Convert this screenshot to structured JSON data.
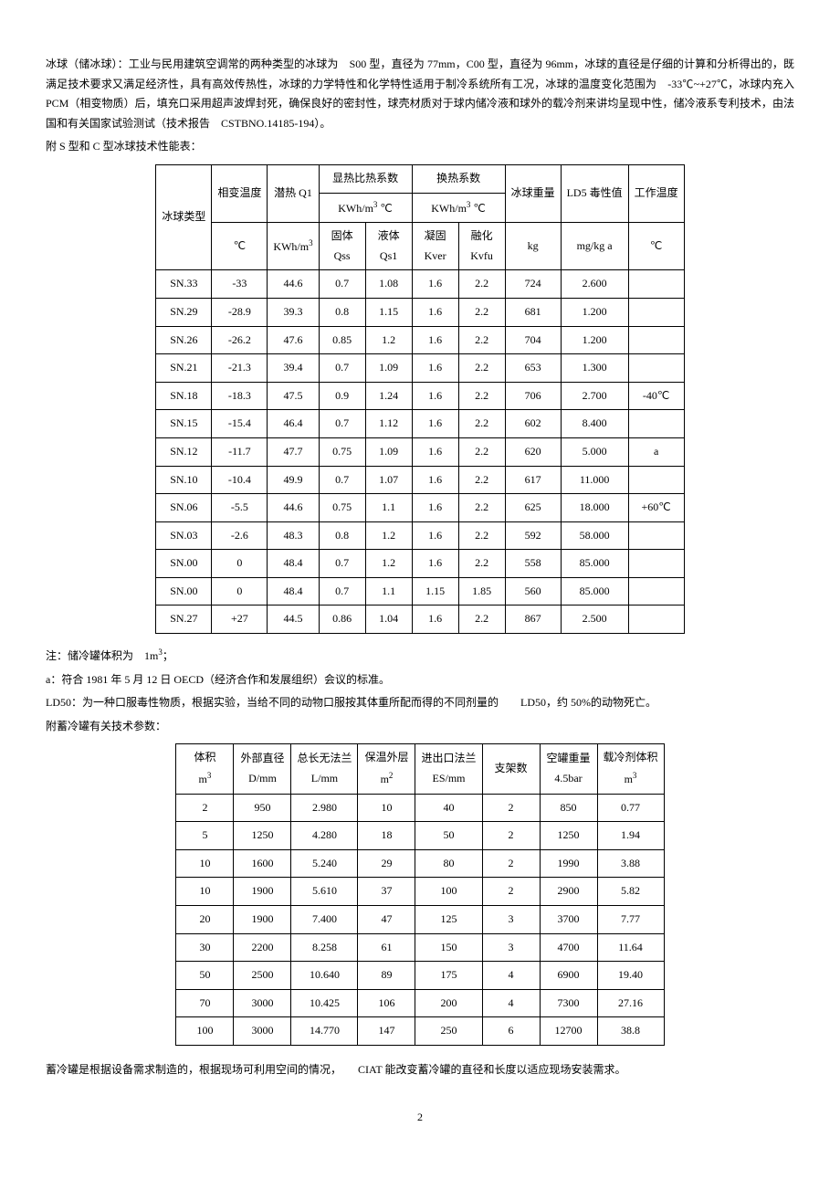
{
  "para1": "冰球（储冰球）：工业与民用建筑空调常的两种类型的冰球为　S00 型，直径为 77mm，C00 型，直径为 96mm，冰球的直径是仔细的计算和分析得出的，既满足技术要求又满足经济性，具有高效传热性，冰球的力学特性和化学特性适用于制冷系统所有工况，冰球的温度变化范围为　-33℃~+27℃，冰球内充入　PCM（相变物质）后，填充口采用超声波焊封死，确保良好的密封性，球壳材质对于球内储冷液和球外的载冷剂来讲均呈现中性，储冷液系专利技术，由法国和有关国家试验测试（技术报告　CSTBNO.14185-194）。",
  "para2": "附 S 型和 C 型冰球技术性能表：",
  "table1": {
    "header": {
      "col1": "冰球类型",
      "col2_l1": "相变温度",
      "col2_l2": "℃",
      "col3_l1": "潜热 Q1",
      "col3_l2_html": "KWh/m<sup>3</sup>",
      "grp1_l1": "显热比热系数",
      "grp1_l2_html": "KWh/m<sup>3</sup> ℃",
      "grp1_c1_l1": "固体",
      "grp1_c1_l2": "Qss",
      "grp1_c2_l1": "液体",
      "grp1_c2_l2": "Qs1",
      "grp2_l1": "换热系数",
      "grp2_l2_html": "KWh/m<sup>3</sup> ℃",
      "grp2_c1_l1": "凝固",
      "grp2_c1_l2": "Kver",
      "grp2_c2_l1": "融化",
      "grp2_c2_l2": "Kvfu",
      "col8_l1": "冰球重量",
      "col8_l2": "kg",
      "col9_l1": "LD5 毒性值",
      "col9_l2": "mg/kg a",
      "col10_l1": "工作温度",
      "col10_l2": "℃"
    },
    "rows": [
      [
        "SN.33",
        "-33",
        "44.6",
        "0.7",
        "1.08",
        "1.6",
        "2.2",
        "724",
        "2.600",
        ""
      ],
      [
        "SN.29",
        "-28.9",
        "39.3",
        "0.8",
        "1.15",
        "1.6",
        "2.2",
        "681",
        "1.200",
        ""
      ],
      [
        "SN.26",
        "-26.2",
        "47.6",
        "0.85",
        "1.2",
        "1.6",
        "2.2",
        "704",
        "1.200",
        ""
      ],
      [
        "SN.21",
        "-21.3",
        "39.4",
        "0.7",
        "1.09",
        "1.6",
        "2.2",
        "653",
        "1.300",
        ""
      ],
      [
        "SN.18",
        "-18.3",
        "47.5",
        "0.9",
        "1.24",
        "1.6",
        "2.2",
        "706",
        "2.700",
        "-40℃"
      ],
      [
        "SN.15",
        "-15.4",
        "46.4",
        "0.7",
        "1.12",
        "1.6",
        "2.2",
        "602",
        "8.400",
        ""
      ],
      [
        "SN.12",
        "-11.7",
        "47.7",
        "0.75",
        "1.09",
        "1.6",
        "2.2",
        "620",
        "5.000",
        "a"
      ],
      [
        "SN.10",
        "-10.4",
        "49.9",
        "0.7",
        "1.07",
        "1.6",
        "2.2",
        "617",
        "11.000",
        ""
      ],
      [
        "SN.06",
        "-5.5",
        "44.6",
        "0.75",
        "1.1",
        "1.6",
        "2.2",
        "625",
        "18.000",
        "+60℃"
      ],
      [
        "SN.03",
        "-2.6",
        "48.3",
        "0.8",
        "1.2",
        "1.6",
        "2.2",
        "592",
        "58.000",
        ""
      ],
      [
        "SN.00",
        "0",
        "48.4",
        "0.7",
        "1.2",
        "1.6",
        "2.2",
        "558",
        "85.000",
        ""
      ],
      [
        "SN.00",
        "0",
        "48.4",
        "0.7",
        "1.1",
        "1.15",
        "1.85",
        "560",
        "85.000",
        ""
      ],
      [
        "SN.27",
        "+27",
        "44.5",
        "0.86",
        "1.04",
        "1.6",
        "2.2",
        "867",
        "2.500",
        ""
      ]
    ]
  },
  "note1_html": "注：储冷罐体积为　1m<sup>3</sup>；",
  "note2": "a：符合 1981 年 5 月 12 日 OECD（经济合作和发展组织）会议的标准。",
  "note3": "LD50：为一种口服毒性物质，根据实验，当给不同的动物口服按其体重所配而得的不同剂量的　　LD50，约 50%的动物死亡。",
  "para3": "附蓄冷罐有关技术参数：",
  "table2": {
    "header": {
      "c1_l1": "体积",
      "c1_l2_html": "m<sup>3</sup>",
      "c2_l1": "外部直径",
      "c2_l2": "D/mm",
      "c3_l1": "总长无法兰",
      "c3_l2": "L/mm",
      "c4_l1": "保温外层",
      "c4_l2_html": "m<sup>2</sup>",
      "c5_l1": "进出口法兰",
      "c5_l2": "ES/mm",
      "c6_l1": "支架数",
      "c7_l1": "空罐重量",
      "c7_l2": "4.5bar",
      "c8_l1": "载冷剂体积",
      "c8_l2_html": "m<sup>3</sup>"
    },
    "rows": [
      [
        "2",
        "950",
        "2.980",
        "10",
        "40",
        "2",
        "850",
        "0.77"
      ],
      [
        "5",
        "1250",
        "4.280",
        "18",
        "50",
        "2",
        "1250",
        "1.94"
      ],
      [
        "10",
        "1600",
        "5.240",
        "29",
        "80",
        "2",
        "1990",
        "3.88"
      ],
      [
        "10",
        "1900",
        "5.610",
        "37",
        "100",
        "2",
        "2900",
        "5.82"
      ],
      [
        "20",
        "1900",
        "7.400",
        "47",
        "125",
        "3",
        "3700",
        "7.77"
      ],
      [
        "30",
        "2200",
        "8.258",
        "61",
        "150",
        "3",
        "4700",
        "11.64"
      ],
      [
        "50",
        "2500",
        "10.640",
        "89",
        "175",
        "4",
        "6900",
        "19.40"
      ],
      [
        "70",
        "3000",
        "10.425",
        "106",
        "200",
        "4",
        "7300",
        "27.16"
      ],
      [
        "100",
        "3000",
        "14.770",
        "147",
        "250",
        "6",
        "12700",
        "38.8"
      ]
    ]
  },
  "para4": "蓄冷罐是根据设备需求制造的，根据现场可利用空间的情况，　　CIAT 能改变蓄冷罐的直径和长度以适应现场安装需求。",
  "pagenum": "2"
}
